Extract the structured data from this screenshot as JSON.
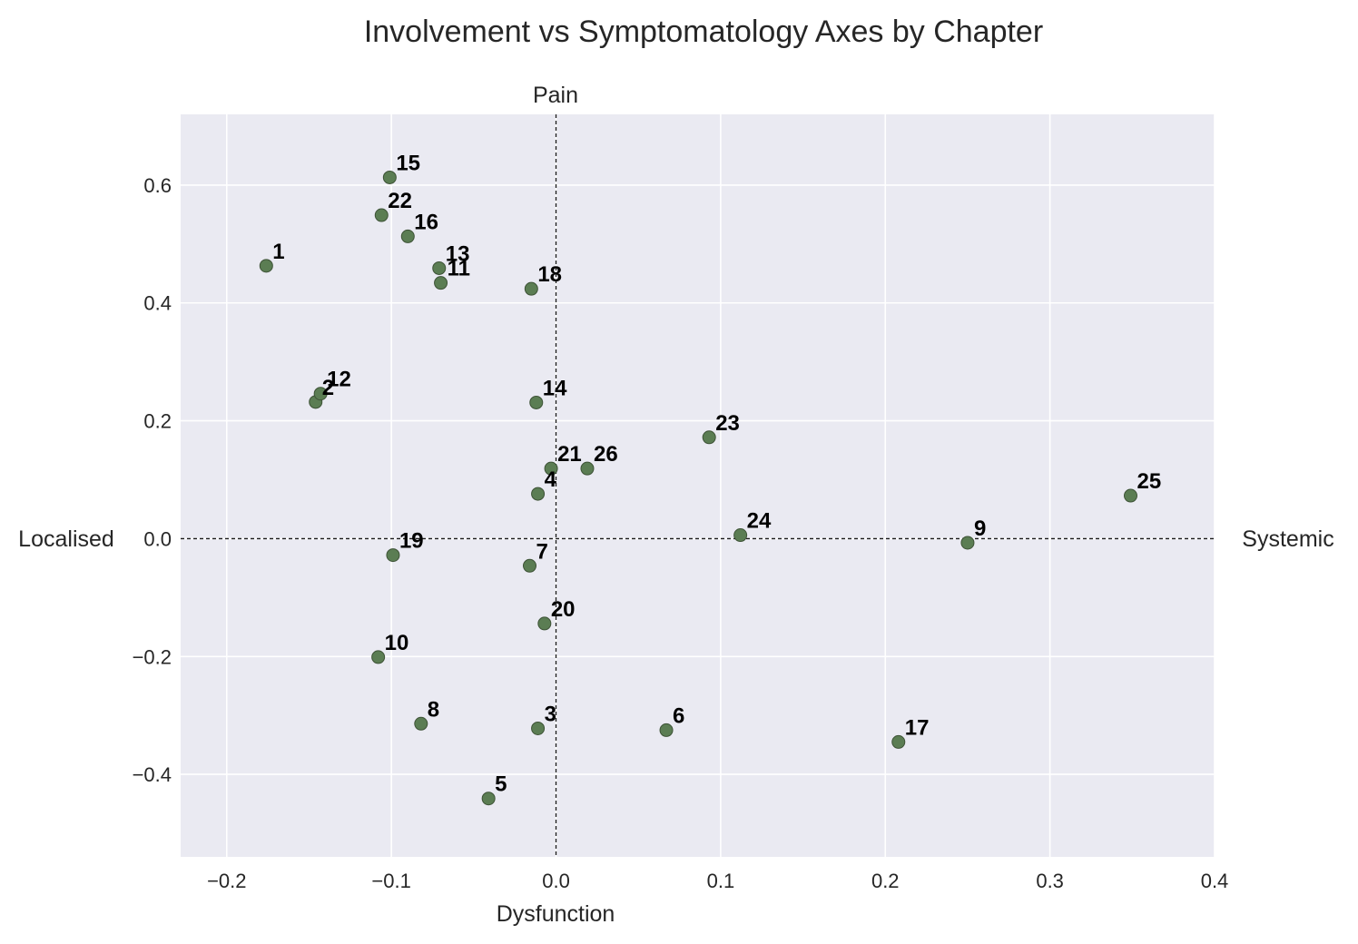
{
  "chart_data": {
    "type": "scatter",
    "title": "Involvement vs Symptomatology Axes by Chapter",
    "xlabel_bottom": "Dysfunction",
    "xlabel_top": "Pain",
    "ylabel_left": "Localised",
    "ylabel_right": "Systemic",
    "xlim": [
      -0.228,
      0.4
    ],
    "ylim": [
      -0.54,
      0.72
    ],
    "xticks": [
      -0.2,
      -0.1,
      0.0,
      0.1,
      0.2,
      0.3,
      0.4
    ],
    "xtick_labels": [
      "−0.2",
      "−0.1",
      "0.0",
      "0.1",
      "0.2",
      "0.3",
      "0.4"
    ],
    "yticks": [
      -0.4,
      -0.2,
      0.0,
      0.2,
      0.4,
      0.6
    ],
    "ytick_labels": [
      "−0.4",
      "−0.2",
      "0.0",
      "0.2",
      "0.4",
      "0.6"
    ],
    "grid": true,
    "reference_lines": {
      "x": 0.0,
      "y": 0.0,
      "style": "dashed"
    },
    "marker_color": "#5b7d53",
    "marker_edge_color": "#3d5236",
    "plot_background": "#eaeaf2",
    "points": [
      {
        "label": "1",
        "x": -0.176,
        "y": 0.463
      },
      {
        "label": "2",
        "x": -0.146,
        "y": 0.232
      },
      {
        "label": "3",
        "x": -0.011,
        "y": -0.322
      },
      {
        "label": "4",
        "x": -0.011,
        "y": 0.076
      },
      {
        "label": "5",
        "x": -0.041,
        "y": -0.441
      },
      {
        "label": "6",
        "x": 0.067,
        "y": -0.325
      },
      {
        "label": "7",
        "x": -0.016,
        "y": -0.046
      },
      {
        "label": "8",
        "x": -0.082,
        "y": -0.314
      },
      {
        "label": "9",
        "x": 0.25,
        "y": -0.007
      },
      {
        "label": "10",
        "x": -0.108,
        "y": -0.201
      },
      {
        "label": "11",
        "x": -0.07,
        "y": 0.434
      },
      {
        "label": "12",
        "x": -0.143,
        "y": 0.246
      },
      {
        "label": "13",
        "x": -0.071,
        "y": 0.459
      },
      {
        "label": "14",
        "x": -0.012,
        "y": 0.231
      },
      {
        "label": "15",
        "x": -0.101,
        "y": 0.613
      },
      {
        "label": "16",
        "x": -0.09,
        "y": 0.513
      },
      {
        "label": "17",
        "x": 0.208,
        "y": -0.345
      },
      {
        "label": "18",
        "x": -0.015,
        "y": 0.424
      },
      {
        "label": "19",
        "x": -0.099,
        "y": -0.028
      },
      {
        "label": "20",
        "x": -0.007,
        "y": -0.144
      },
      {
        "label": "21",
        "x": -0.003,
        "y": 0.119
      },
      {
        "label": "22",
        "x": -0.106,
        "y": 0.549
      },
      {
        "label": "23",
        "x": 0.093,
        "y": 0.172
      },
      {
        "label": "24",
        "x": 0.112,
        "y": 0.006
      },
      {
        "label": "25",
        "x": 0.349,
        "y": 0.073
      },
      {
        "label": "26",
        "x": 0.019,
        "y": 0.119
      }
    ]
  }
}
